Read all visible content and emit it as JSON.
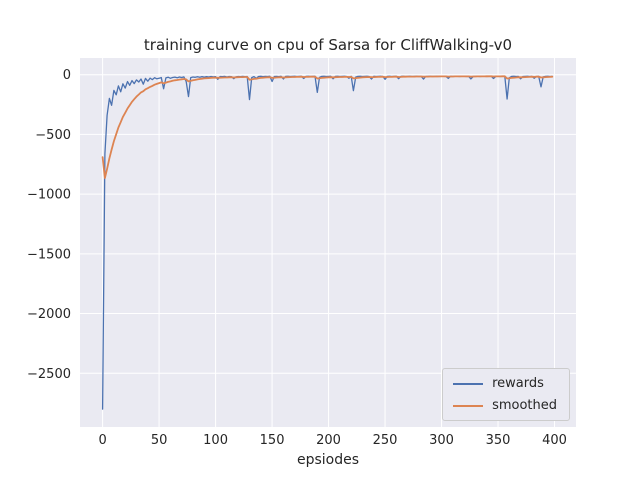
{
  "chart_data": {
    "type": "line",
    "title": "training curve on cpu of Sarsa for CliffWalking-v0",
    "xlabel": "epsiodes",
    "ylabel": "",
    "xlim": [
      -20,
      419
    ],
    "ylim": [
      -2950,
      140
    ],
    "xticks": [
      0,
      50,
      100,
      150,
      200,
      250,
      300,
      350,
      400
    ],
    "yticks": [
      0,
      -500,
      -1000,
      -1500,
      -2000,
      -2500
    ],
    "grid": true,
    "grid_color": "#ffffff",
    "background": "#eaeaf2",
    "text_color": "#262626",
    "legend_position": "lower right",
    "x": [
      0,
      2,
      4,
      6,
      8,
      10,
      12,
      14,
      16,
      18,
      20,
      22,
      24,
      26,
      28,
      30,
      32,
      34,
      36,
      38,
      40,
      42,
      44,
      46,
      48,
      50,
      52,
      54,
      56,
      58,
      60,
      62,
      64,
      66,
      68,
      70,
      72,
      74,
      76,
      78,
      80,
      82,
      84,
      86,
      88,
      90,
      92,
      94,
      96,
      98,
      100,
      102,
      104,
      106,
      108,
      110,
      112,
      114,
      116,
      118,
      120,
      122,
      124,
      126,
      128,
      130,
      132,
      134,
      136,
      138,
      140,
      142,
      144,
      146,
      148,
      150,
      152,
      154,
      156,
      158,
      160,
      162,
      164,
      166,
      168,
      170,
      172,
      174,
      176,
      178,
      180,
      182,
      184,
      186,
      188,
      190,
      192,
      194,
      196,
      198,
      200,
      202,
      204,
      206,
      208,
      210,
      212,
      214,
      216,
      218,
      220,
      222,
      224,
      226,
      228,
      230,
      232,
      234,
      236,
      238,
      240,
      242,
      244,
      246,
      248,
      250,
      252,
      254,
      256,
      258,
      260,
      262,
      264,
      266,
      268,
      270,
      272,
      274,
      276,
      278,
      280,
      282,
      284,
      286,
      288,
      290,
      292,
      294,
      296,
      298,
      300,
      302,
      304,
      306,
      308,
      310,
      312,
      314,
      316,
      318,
      320,
      322,
      324,
      326,
      328,
      330,
      332,
      334,
      336,
      338,
      340,
      342,
      344,
      346,
      348,
      350,
      352,
      354,
      356,
      358,
      360,
      362,
      364,
      366,
      368,
      370,
      372,
      374,
      376,
      378,
      380,
      382,
      384,
      386,
      388,
      390,
      392,
      394,
      396,
      398
    ],
    "series": [
      {
        "name": "rewards",
        "color": "#4c72b0",
        "values": [
          -2800,
          -662,
          -340,
          -198,
          -256,
          -131,
          -168,
          -94,
          -143,
          -76,
          -112,
          -58,
          -89,
          -49,
          -74,
          -43,
          -61,
          -36,
          -79,
          -31,
          -54,
          -28,
          -41,
          -25,
          -34,
          -29,
          -24,
          -118,
          -27,
          -21,
          -30,
          -23,
          -20,
          -26,
          -19,
          -23,
          -18,
          -58,
          -183,
          -24,
          -19,
          -22,
          -17,
          -21,
          -16,
          -20,
          -17,
          -19,
          -15,
          -18,
          -16,
          -38,
          -15,
          -17,
          -14,
          -19,
          -15,
          -16,
          -33,
          -18,
          -15,
          -16,
          -14,
          -17,
          -15,
          -208,
          -24,
          -16,
          -31,
          -15,
          -13,
          -16,
          -14,
          -15,
          -13,
          -57,
          -15,
          -14,
          -16,
          -13,
          -36,
          -14,
          -13,
          -15,
          -14,
          -13,
          -15,
          -14,
          -13,
          -32,
          -14,
          -13,
          -15,
          -14,
          -13,
          -148,
          -22,
          -14,
          -13,
          -15,
          -14,
          -13,
          -34,
          -14,
          -13,
          -15,
          -14,
          -13,
          -15,
          -30,
          -13,
          -134,
          -20,
          -14,
          -13,
          -15,
          -14,
          -13,
          -15,
          -36,
          -13,
          -15,
          -14,
          -13,
          -15,
          -38,
          -14,
          -13,
          -15,
          -14,
          -13,
          -33,
          -14,
          -13,
          -15,
          -14,
          -13,
          -15,
          -14,
          -13,
          -15,
          -14,
          -37,
          -15,
          -14,
          -13,
          -15,
          -14,
          -13,
          -15,
          -14,
          -13,
          -15,
          -31,
          -13,
          -15,
          -14,
          -13,
          -15,
          -14,
          -13,
          -15,
          -14,
          -35,
          -15,
          -14,
          -13,
          -15,
          -14,
          -13,
          -15,
          -14,
          -13,
          -32,
          -14,
          -13,
          -15,
          -14,
          -13,
          -203,
          -26,
          -14,
          -13,
          -15,
          -14,
          -34,
          -15,
          -14,
          -13,
          -15,
          -14,
          -30,
          -15,
          -14,
          -102,
          -18,
          -14,
          -13,
          -15,
          -14
        ]
      },
      {
        "name": "smoothed",
        "color": "#dd8452",
        "values": [
          -690,
          -865,
          -788,
          -700,
          -627,
          -556,
          -498,
          -442,
          -398,
          -353,
          -319,
          -283,
          -255,
          -227,
          -205,
          -183,
          -166,
          -148,
          -138,
          -122,
          -113,
          -102,
          -94,
          -84,
          -77,
          -70,
          -64,
          -72,
          -66,
          -60,
          -56,
          -51,
          -47,
          -44,
          -41,
          -38,
          -36,
          -39,
          -56,
          -52,
          -47,
          -43,
          -39,
          -36,
          -33,
          -31,
          -29,
          -28,
          -26,
          -25,
          -24,
          -26,
          -25,
          -24,
          -23,
          -23,
          -22,
          -21,
          -23,
          -22,
          -21,
          -20,
          -20,
          -19,
          -19,
          -42,
          -39,
          -35,
          -33,
          -30,
          -27,
          -25,
          -23,
          -22,
          -21,
          -26,
          -25,
          -23,
          -22,
          -21,
          -23,
          -22,
          -21,
          -20,
          -19,
          -19,
          -18,
          -18,
          -17,
          -19,
          -18,
          -18,
          -17,
          -17,
          -16,
          -32,
          -30,
          -27,
          -25,
          -23,
          -22,
          -21,
          -22,
          -21,
          -20,
          -19,
          -19,
          -18,
          -18,
          -19,
          -18,
          -31,
          -29,
          -26,
          -24,
          -22,
          -21,
          -20,
          -19,
          -21,
          -20,
          -19,
          -18,
          -18,
          -17,
          -20,
          -19,
          -18,
          -18,
          -17,
          -17,
          -19,
          -18,
          -17,
          -17,
          -16,
          -16,
          -16,
          -16,
          -15,
          -15,
          -15,
          -17,
          -16,
          -16,
          -15,
          -15,
          -15,
          -15,
          -14,
          -14,
          -14,
          -14,
          -16,
          -15,
          -15,
          -14,
          -14,
          -14,
          -14,
          -14,
          -14,
          -14,
          -16,
          -15,
          -15,
          -14,
          -14,
          -14,
          -14,
          -13,
          -13,
          -13,
          -15,
          -14,
          -14,
          -14,
          -13,
          -13,
          -32,
          -30,
          -27,
          -25,
          -23,
          -21,
          -22,
          -21,
          -20,
          -19,
          -18,
          -17,
          -18,
          -17,
          -16,
          -23,
          -22,
          -20,
          -19,
          -18,
          -17
        ]
      }
    ]
  }
}
